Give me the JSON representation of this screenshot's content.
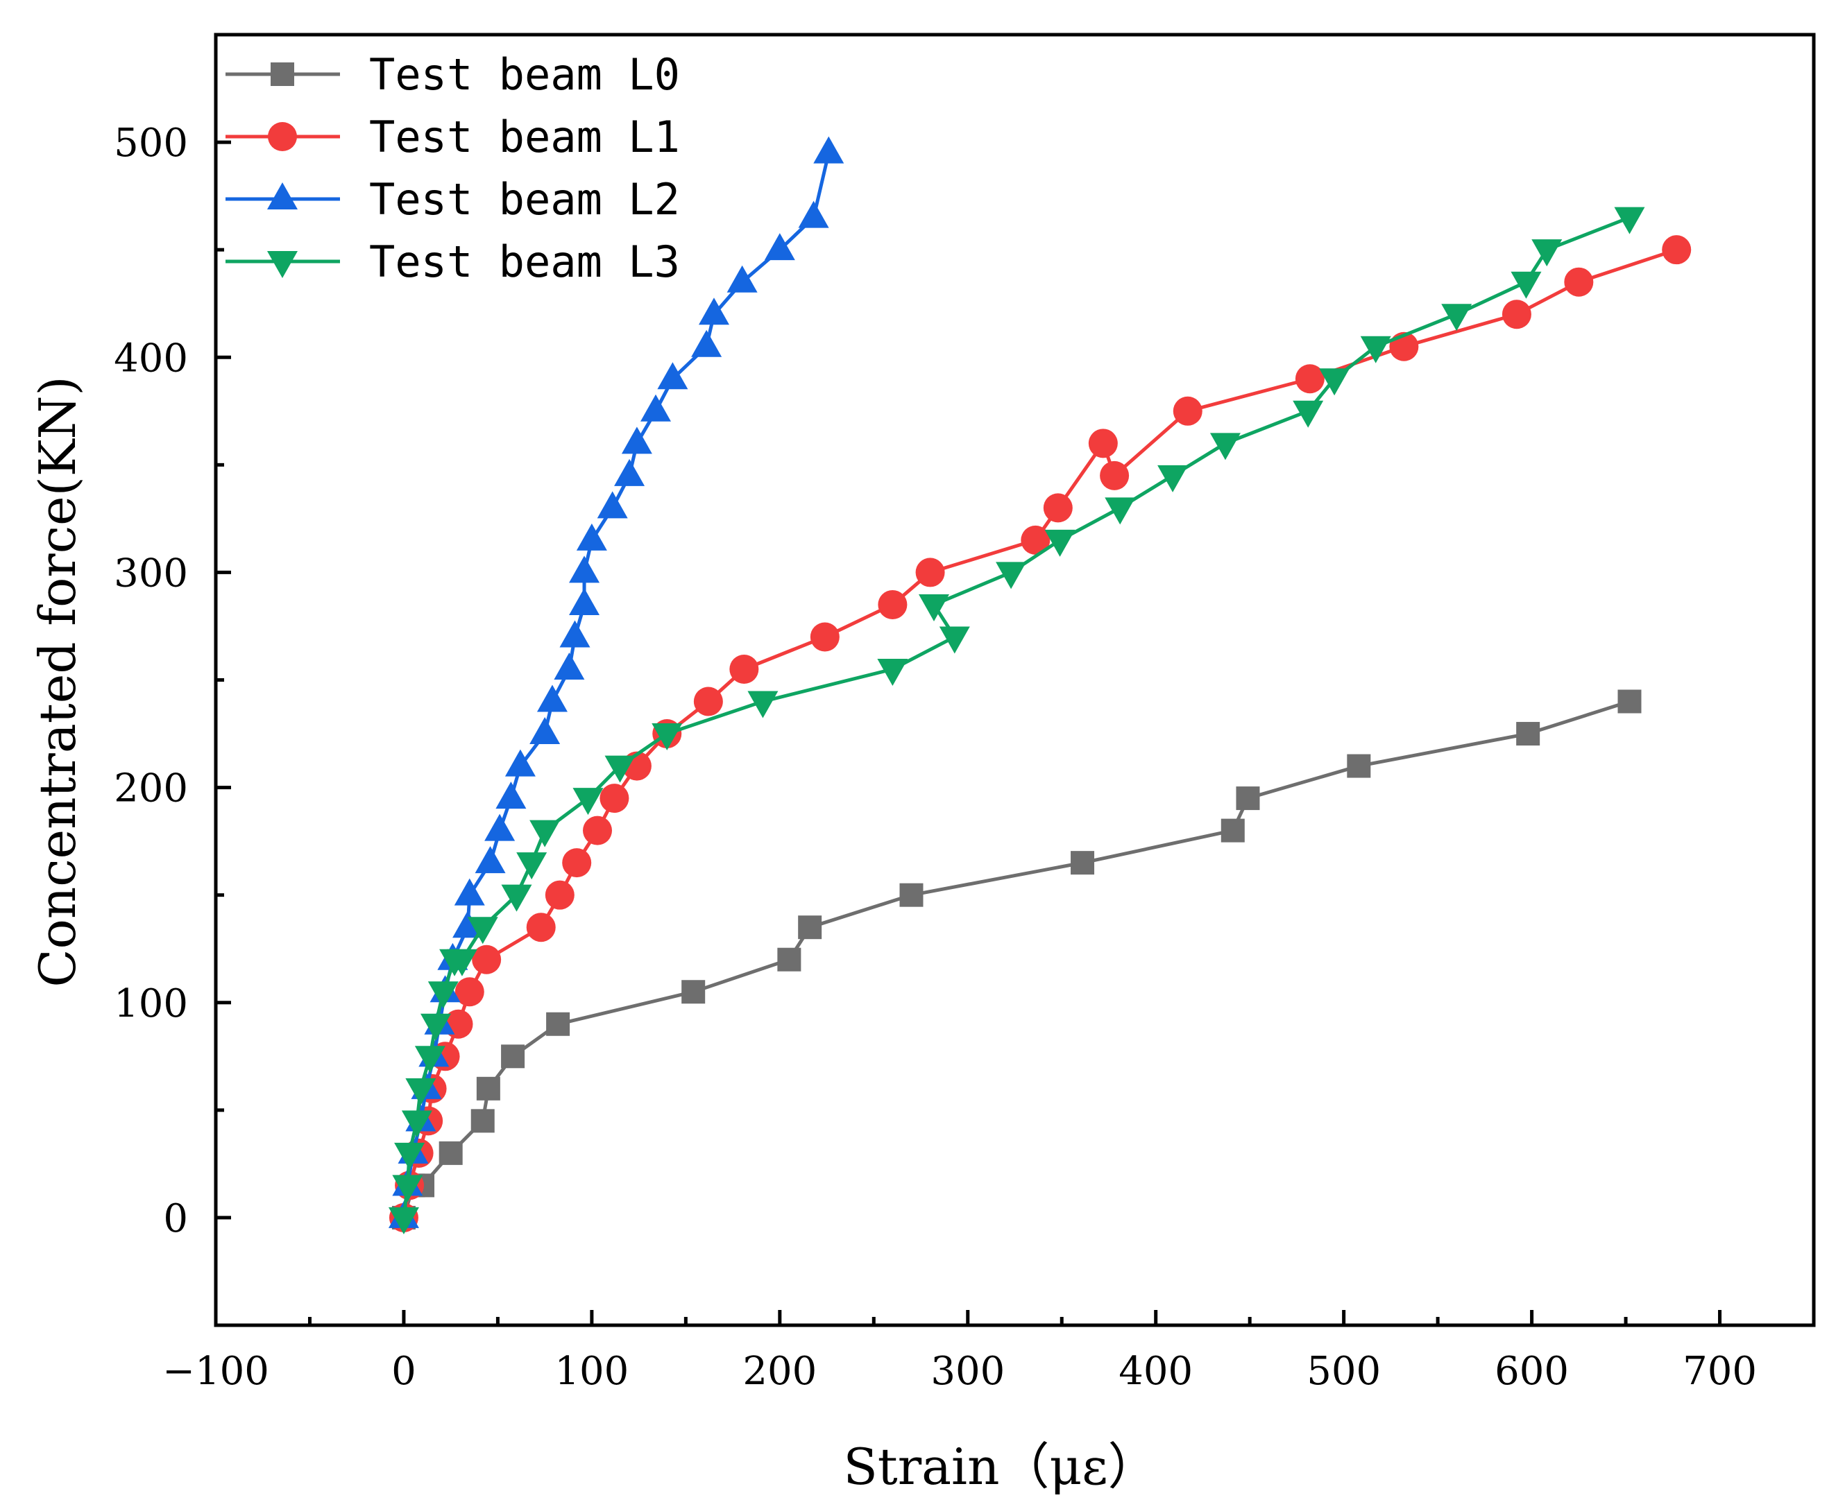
{
  "chart_data": {
    "type": "line",
    "title": "",
    "xlabel": "Strain（με）",
    "ylabel": "Concentrated force(KN)",
    "xlim": [
      -100,
      750
    ],
    "ylim": [
      -50,
      550
    ],
    "xticks": [
      -100,
      0,
      100,
      200,
      300,
      400,
      500,
      600,
      700
    ],
    "xtick_labels": [
      "−100",
      "0",
      "100",
      "200",
      "300",
      "400",
      "500",
      "600",
      "700"
    ],
    "yticks": [
      0,
      100,
      200,
      300,
      400,
      500
    ],
    "ytick_labels": [
      "0",
      "100",
      "200",
      "300",
      "400",
      "500"
    ],
    "grid": false,
    "legend_position": "top-left",
    "series": [
      {
        "name": "Test beam L0",
        "color": "#6e6e6e",
        "marker": "square",
        "x": [
          0,
          5,
          10,
          25,
          42,
          45,
          58,
          82,
          154,
          205,
          216,
          270,
          361,
          441,
          449,
          508,
          598,
          652
        ],
        "y": [
          0,
          15,
          15,
          30,
          45,
          60,
          75,
          90,
          105,
          120,
          135,
          150,
          165,
          180,
          195,
          210,
          225,
          240
        ]
      },
      {
        "name": "Test beam L1",
        "color": "#f23c3c",
        "marker": "circle",
        "x": [
          0,
          3,
          8,
          13,
          15,
          22,
          29,
          35,
          44,
          73,
          83,
          92,
          103,
          112,
          124,
          140,
          162,
          181,
          224,
          260,
          280,
          336,
          348,
          372,
          378,
          417,
          482,
          532,
          592,
          625,
          677
        ],
        "y": [
          0,
          15,
          30,
          45,
          60,
          75,
          90,
          105,
          120,
          135,
          150,
          165,
          180,
          195,
          210,
          225,
          240,
          255,
          270,
          285,
          300,
          315,
          330,
          360,
          345,
          375,
          390,
          405,
          420,
          435,
          450
        ]
      },
      {
        "name": "Test beam L2",
        "color": "#1566e0",
        "marker": "triangle-up",
        "x": [
          0,
          2,
          5,
          9,
          12,
          16,
          19,
          22,
          26,
          34,
          35,
          46,
          51,
          57,
          62,
          75,
          79,
          88,
          91,
          96,
          96,
          100,
          111,
          120,
          124,
          134,
          143,
          161,
          165,
          180,
          200,
          218,
          226
        ],
        "y": [
          0,
          15,
          30,
          45,
          60,
          75,
          90,
          105,
          120,
          135,
          150,
          165,
          180,
          195,
          210,
          225,
          240,
          255,
          270,
          285,
          300,
          315,
          330,
          345,
          360,
          375,
          390,
          405,
          420,
          435,
          450,
          465,
          495
        ]
      },
      {
        "name": "Test beam L3",
        "color": "#0ea562",
        "marker": "triangle-down",
        "x": [
          0,
          2,
          3,
          7,
          9,
          14,
          17,
          21,
          27,
          31,
          42,
          60,
          68,
          75,
          98,
          115,
          140,
          191,
          260,
          293,
          282,
          323,
          349,
          381,
          409,
          437,
          481,
          495,
          517,
          560,
          597,
          608,
          652
        ],
        "y": [
          0,
          15,
          30,
          45,
          60,
          75,
          90,
          105,
          120,
          120,
          135,
          150,
          165,
          180,
          195,
          210,
          225,
          240,
          255,
          270,
          285,
          300,
          315,
          330,
          345,
          360,
          375,
          390,
          405,
          420,
          435,
          450,
          465
        ]
      }
    ]
  }
}
